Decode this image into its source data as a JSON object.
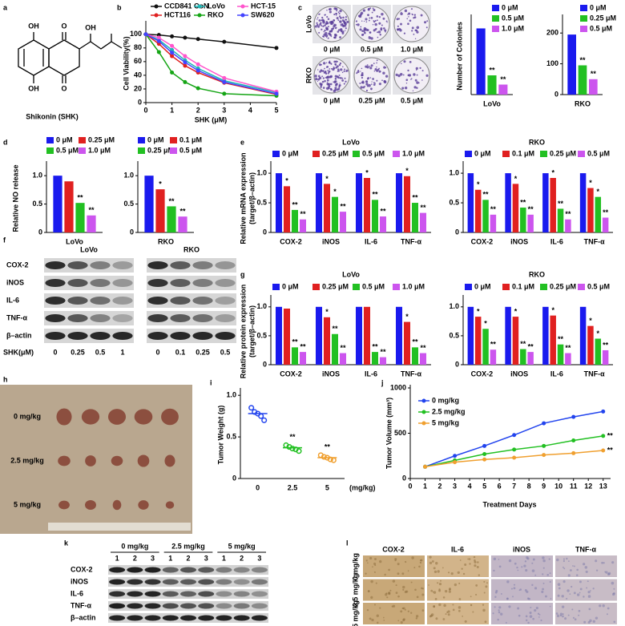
{
  "chart_data": [
    {
      "type": "line",
      "ylabel": "Cell Viability(%)",
      "xlabel": "SHK (μM)",
      "x": [
        0,
        0.5,
        1,
        1.5,
        2,
        3,
        5
      ],
      "xlim": [
        0,
        5
      ],
      "xticks": [
        0,
        1,
        2,
        3,
        4,
        5
      ],
      "ylim": [
        0,
        115
      ],
      "yticks": [
        0,
        20,
        40,
        60,
        80,
        100
      ],
      "series": [
        {
          "name": "CCD841 CoN",
          "color": "#111111",
          "values": [
            100,
            99,
            97,
            95,
            93,
            89,
            80
          ]
        },
        {
          "name": "LoVo",
          "color": "#1fb5b5",
          "values": [
            100,
            92,
            77,
            62,
            50,
            32,
            15
          ]
        },
        {
          "name": "HCT-15",
          "color": "#ff55cc",
          "values": [
            100,
            95,
            83,
            68,
            56,
            36,
            16
          ]
        },
        {
          "name": "HCT116",
          "color": "#e02020",
          "values": [
            100,
            86,
            68,
            54,
            44,
            29,
            12
          ]
        },
        {
          "name": "RKO",
          "color": "#15a515",
          "values": [
            100,
            74,
            44,
            30,
            21,
            13,
            10
          ]
        },
        {
          "name": "SW620",
          "color": "#4444ff",
          "values": [
            100,
            90,
            73,
            59,
            47,
            30,
            13
          ]
        }
      ]
    },
    {
      "type": "bar",
      "ylabel": "Number of Colonies",
      "categories": [
        "LoVo"
      ],
      "ylim": [
        0,
        500
      ],
      "series": [
        {
          "name": "0 μM",
          "color": "#1a1aee",
          "values": [
            430
          ]
        },
        {
          "name": "0.5 μM",
          "color": "#22c022",
          "values": [
            125
          ],
          "annotations": [
            "**"
          ]
        },
        {
          "name": "1.0 μM",
          "color": "#cc55ee",
          "values": [
            65
          ],
          "annotations": [
            "**"
          ]
        }
      ]
    },
    {
      "type": "bar",
      "categories": [
        "RKO"
      ],
      "ylim": [
        0,
        250
      ],
      "yticks": [
        0,
        100,
        200
      ],
      "series": [
        {
          "name": "0 μM",
          "color": "#1a1aee",
          "values": [
            195
          ]
        },
        {
          "name": "0.25 μM",
          "color": "#22c022",
          "values": [
            95
          ],
          "annotations": [
            "**"
          ]
        },
        {
          "name": "0.5 μM",
          "color": "#cc55ee",
          "values": [
            50
          ],
          "annotations": [
            "**"
          ]
        }
      ]
    },
    {
      "type": "bar",
      "ylabel": "Relative NO release",
      "categories": [
        "LoVo"
      ],
      "ylim": [
        0,
        1.2
      ],
      "yticks": [
        0,
        0.5,
        {
          "value": 1,
          "label": "1.0"
        }
      ],
      "series": [
        {
          "name": "0 μM",
          "color": "#1a1aee",
          "values": [
            1.0
          ]
        },
        {
          "name": "0.25 μM",
          "color": "#e02020",
          "values": [
            0.9
          ]
        },
        {
          "name": "0.5 μM",
          "color": "#22c022",
          "values": [
            0.52
          ],
          "annotations": [
            "**"
          ]
        },
        {
          "name": "1.0 μM",
          "color": "#cc55ee",
          "values": [
            0.3
          ],
          "annotations": [
            "**"
          ]
        }
      ]
    },
    {
      "type": "bar",
      "categories": [
        "RKO"
      ],
      "ylim": [
        0,
        1.2
      ],
      "yticks": [
        0,
        0.5,
        {
          "value": 1,
          "label": "1.0"
        }
      ],
      "series": [
        {
          "name": "0 μM",
          "color": "#1a1aee",
          "values": [
            1.0
          ]
        },
        {
          "name": "0.1 μM",
          "color": "#e02020",
          "values": [
            0.76
          ],
          "annotations": [
            "*"
          ]
        },
        {
          "name": "0.25 μM",
          "color": "#22c022",
          "values": [
            0.46
          ],
          "annotations": [
            "**"
          ]
        },
        {
          "name": "0.5 μM",
          "color": "#cc55ee",
          "values": [
            0.28
          ],
          "annotations": [
            "**"
          ]
        }
      ]
    },
    {
      "type": "bar",
      "title": "LoVo",
      "ylabel": [
        "Relative mRNA expression",
        "(target/β–actin)"
      ],
      "categories": [
        "COX-2",
        "iNOS",
        "IL-6",
        "TNF-α"
      ],
      "ylim": [
        0,
        1.15
      ],
      "yticks": [
        0,
        0.5,
        {
          "value": 1,
          "label": "1.0"
        }
      ],
      "series": [
        {
          "name": "0 μM",
          "color": "#1a1aee",
          "values": [
            1.0,
            1.0,
            1.0,
            1.0
          ]
        },
        {
          "name": "0.25 μM",
          "color": "#e02020",
          "values": [
            0.78,
            0.82,
            0.92,
            0.95
          ],
          "annotations": [
            "*",
            "*",
            "*",
            "*"
          ]
        },
        {
          "name": "0.5 μM",
          "color": "#22c022",
          "values": [
            0.38,
            0.6,
            0.55,
            0.5
          ],
          "annotations": [
            "**",
            "*",
            "**",
            "**"
          ]
        },
        {
          "name": "1.0 μM",
          "color": "#cc55ee",
          "values": [
            0.22,
            0.35,
            0.27,
            0.33
          ],
          "annotations": [
            "**",
            "**",
            "**",
            "**"
          ]
        }
      ]
    },
    {
      "type": "bar",
      "title": "RKO",
      "categories": [
        "COX-2",
        "iNOS",
        "IL-6",
        "TNF-α"
      ],
      "ylim": [
        0,
        1.15
      ],
      "yticks": [
        0,
        0.5,
        {
          "value": 1,
          "label": "1.0"
        }
      ],
      "series": [
        {
          "name": "0 μM",
          "color": "#1a1aee",
          "values": [
            1.0,
            1.0,
            1.0,
            1.0
          ]
        },
        {
          "name": "0.1 μM",
          "color": "#e02020",
          "values": [
            0.72,
            0.82,
            0.92,
            0.75
          ],
          "annotations": [
            "*",
            "*",
            "*",
            "*"
          ]
        },
        {
          "name": "0.25 μM",
          "color": "#22c022",
          "values": [
            0.55,
            0.42,
            0.4,
            0.6
          ],
          "annotations": [
            "**",
            "**",
            "**",
            "*"
          ]
        },
        {
          "name": "0.5 μM",
          "color": "#cc55ee",
          "values": [
            0.3,
            0.3,
            0.22,
            0.25
          ],
          "annotations": [
            "**",
            "**",
            "**",
            "**"
          ]
        }
      ]
    },
    {
      "type": "bar",
      "title": "LoVo",
      "ylabel": [
        "Relative protein expression",
        "(target/β–actin)"
      ],
      "categories": [
        "COX-2",
        "iNOS",
        "IL-6",
        "TNF-α"
      ],
      "ylim": [
        0,
        1.15
      ],
      "yticks": [
        0,
        0.5,
        {
          "value": 1,
          "label": "1.0"
        }
      ],
      "series": [
        {
          "name": "0 μM",
          "color": "#1a1aee",
          "values": [
            1.0,
            1.0,
            1.0,
            1.0
          ]
        },
        {
          "name": "0.25 μM",
          "color": "#e02020",
          "values": [
            0.97,
            0.82,
            1.0,
            0.74
          ],
          "annotations": [
            null,
            "*",
            null,
            "*"
          ]
        },
        {
          "name": "0.5 μM",
          "color": "#22c022",
          "values": [
            0.3,
            0.53,
            0.22,
            0.3
          ],
          "annotations": [
            "**",
            "**",
            "**",
            "**"
          ]
        },
        {
          "name": "1.0 μM",
          "color": "#cc55ee",
          "values": [
            0.22,
            0.2,
            0.13,
            0.2
          ],
          "annotations": [
            "**",
            "**",
            "**",
            "**"
          ]
        }
      ]
    },
    {
      "type": "bar",
      "title": "RKO",
      "categories": [
        "COX-2",
        "iNOS",
        "IL-6",
        "TNF-α"
      ],
      "ylim": [
        0,
        1.15
      ],
      "yticks": [
        0,
        0.5,
        {
          "value": 1,
          "label": "1.0"
        }
      ],
      "series": [
        {
          "name": "0 μM",
          "color": "#1a1aee",
          "values": [
            1.0,
            1.0,
            1.0,
            1.0
          ]
        },
        {
          "name": "0.1 μM",
          "color": "#e02020",
          "values": [
            0.83,
            0.83,
            0.85,
            0.67
          ],
          "annotations": [
            "*",
            "*",
            "*",
            "*"
          ]
        },
        {
          "name": "0.25 μM",
          "color": "#22c022",
          "values": [
            0.62,
            0.27,
            0.35,
            0.45
          ],
          "annotations": [
            "*",
            "**",
            "**",
            "*"
          ]
        },
        {
          "name": "0.5 μM",
          "color": "#cc55ee",
          "values": [
            0.26,
            0.22,
            0.2,
            0.25
          ],
          "annotations": [
            "**",
            "**",
            "**",
            "**"
          ]
        }
      ]
    },
    {
      "type": "dot",
      "ylabel": "Tumor Weight (g)",
      "xlabel": "(mg/kg)",
      "categories": [
        "0",
        "2.5",
        "5"
      ],
      "ylim": [
        0,
        1.05
      ],
      "yticks": [
        0,
        0.5,
        {
          "value": 1,
          "label": "1.0"
        }
      ],
      "colors": [
        "#2244ee",
        "#22c022",
        "#f0a030"
      ],
      "values": [
        [
          0.85,
          0.8,
          0.78,
          0.75,
          0.7
        ],
        [
          0.4,
          0.38,
          0.36,
          0.35,
          0.33
        ],
        [
          0.28,
          0.26,
          0.25,
          0.23,
          0.22
        ]
      ],
      "means": [
        0.78,
        0.37,
        0.25
      ],
      "annotations": [
        null,
        "**",
        "**"
      ]
    },
    {
      "type": "line",
      "ylabel": "Tumor Volume (mm³)",
      "xlabel": "Treatment Days",
      "x": [
        1,
        3,
        5,
        7,
        9,
        11,
        13
      ],
      "xlim": [
        0,
        13.5
      ],
      "xticks": [
        0,
        1,
        2,
        3,
        4,
        5,
        6,
        7,
        8,
        9,
        10,
        11,
        12,
        13
      ],
      "ylim": [
        0,
        1000
      ],
      "yticks": [
        0,
        500,
        1000
      ],
      "series": [
        {
          "name": "0    mg/kg",
          "color": "#2244ee",
          "values": [
            130,
            250,
            360,
            480,
            610,
            680,
            740
          ]
        },
        {
          "name": "2.5 mg/kg",
          "color": "#22c022",
          "values": [
            130,
            200,
            270,
            320,
            360,
            420,
            470
          ],
          "annotation": "**"
        },
        {
          "name": "5    mg/kg",
          "color": "#f0a030",
          "values": [
            130,
            180,
            210,
            230,
            260,
            280,
            310
          ],
          "annotation": "**"
        }
      ]
    }
  ],
  "figure": {
    "panel_labels": [
      "a",
      "b",
      "c",
      "d",
      "e",
      "f",
      "g",
      "h",
      "i",
      "j",
      "k",
      "l"
    ],
    "structure": {
      "atoms": [
        "OH",
        "O",
        "OH",
        "OH",
        "O"
      ],
      "caption": "Shikonin (SHK)"
    },
    "colony": {
      "rows": [
        "LoVo",
        "RKO"
      ],
      "doses": [
        [
          "0 μM",
          "0.5 μM",
          "1.0 μM"
        ],
        [
          "0 μM",
          "0.25 μM",
          "0.5 μM"
        ]
      ]
    },
    "blot_f": {
      "cell_lines": [
        "LoVo",
        "RKO"
      ],
      "proteins": [
        "COX-2",
        "iNOS",
        "IL-6",
        "TNF-α",
        "β–actin"
      ],
      "dose_label": "SHK(μM)",
      "doses": [
        [
          "0",
          "0.25",
          "0.5",
          "1"
        ],
        [
          "0",
          "0.1",
          "0.25",
          "0.5"
        ]
      ]
    },
    "tumors": {
      "rows": [
        "0 mg/kg",
        "2.5 mg/kg",
        "5 mg/kg"
      ]
    },
    "blot_k": {
      "groups": [
        "0 mg/kg",
        "2.5 mg/kg",
        "5 mg/kg"
      ],
      "lanes": [
        "1",
        "2",
        "3"
      ],
      "proteins": [
        "COX-2",
        "iNOS",
        "IL-6",
        "TNF-α",
        "β–actin"
      ]
    },
    "ihc": {
      "columns": [
        "COX-2",
        "IL-6",
        "iNOS",
        "TNF-α"
      ],
      "rows": [
        "0 mg/kg",
        "2.5 mg/kg",
        "5 mg/kg"
      ]
    }
  }
}
